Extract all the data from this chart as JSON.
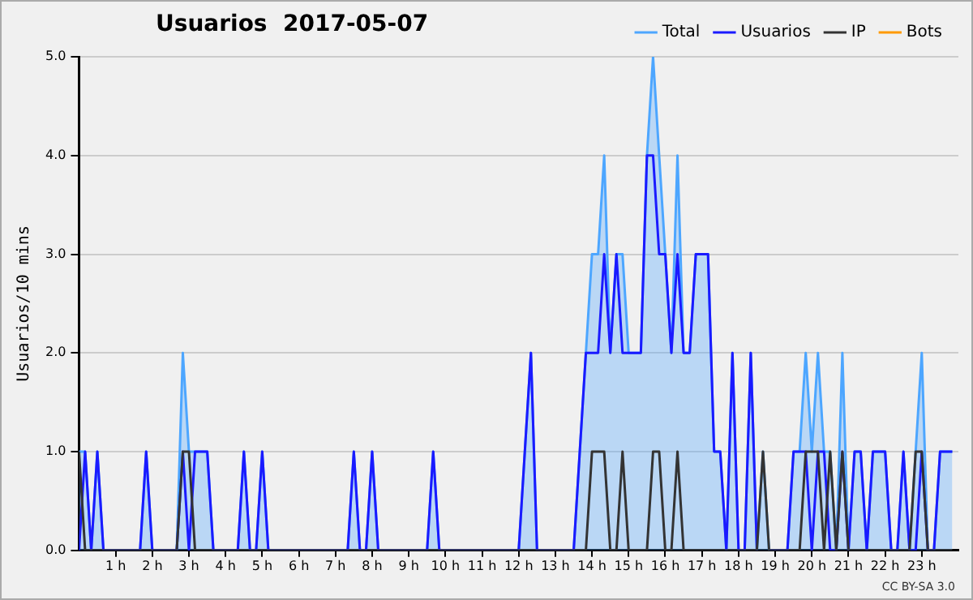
{
  "chart_data": {
    "type": "line",
    "title": "Usuarios  2017-05-07",
    "ylabel": "Usuarios/10 mins",
    "annotations": [
      "CC BY-SA 3.0"
    ],
    "x": [
      0,
      0.1667,
      0.3333,
      0.5,
      0.6667,
      0.8333,
      1,
      1.1667,
      1.3333,
      1.5,
      1.6667,
      1.8333,
      2,
      2.1667,
      2.3333,
      2.5,
      2.6667,
      2.8333,
      3,
      3.1667,
      3.3333,
      3.5,
      3.6667,
      3.8333,
      4,
      4.1667,
      4.3333,
      4.5,
      4.6667,
      4.8333,
      5,
      5.1667,
      5.3333,
      5.5,
      5.6667,
      5.8333,
      6,
      6.1667,
      6.3333,
      6.5,
      6.6667,
      6.8333,
      7,
      7.1667,
      7.3333,
      7.5,
      7.6667,
      7.8333,
      8,
      8.1667,
      8.3333,
      8.5,
      8.6667,
      8.8333,
      9,
      9.1667,
      9.3333,
      9.5,
      9.6667,
      9.8333,
      10,
      10.1667,
      10.3333,
      10.5,
      10.6667,
      10.8333,
      11,
      11.1667,
      11.3333,
      11.5,
      11.6667,
      11.8333,
      12,
      12.1667,
      12.3333,
      12.5,
      12.6667,
      12.8333,
      13,
      13.1667,
      13.3333,
      13.5,
      13.6667,
      13.8333,
      14,
      14.1667,
      14.3333,
      14.5,
      14.6667,
      14.8333,
      15,
      15.1667,
      15.3333,
      15.5,
      15.6667,
      15.8333,
      16,
      16.1667,
      16.3333,
      16.5,
      16.6667,
      16.8333,
      17,
      17.1667,
      17.3333,
      17.5,
      17.6667,
      17.8333,
      18,
      18.1667,
      18.3333,
      18.5,
      18.6667,
      18.8333,
      19,
      19.1667,
      19.3333,
      19.5,
      19.6667,
      19.8333,
      20,
      20.1667,
      20.3333,
      20.5,
      20.6667,
      20.8333,
      21,
      21.1667,
      21.3333,
      21.5,
      21.6667,
      21.8333,
      22,
      22.1667,
      22.3333,
      22.5,
      22.6667,
      22.8333,
      23,
      23.1667,
      23.3333,
      23.5,
      23.6667,
      23.8333
    ],
    "series": [
      {
        "name": "Total",
        "type": "area",
        "color": "#4da6ff",
        "values": [
          1,
          1,
          0,
          1,
          0,
          0,
          0,
          0,
          0,
          0,
          0,
          1,
          0,
          0,
          0,
          0,
          0,
          2,
          1,
          1,
          1,
          1,
          0,
          0,
          0,
          0,
          0,
          1,
          0,
          0,
          1,
          0,
          0,
          0,
          0,
          0,
          0,
          0,
          0,
          0,
          0,
          0,
          0,
          0,
          0,
          1,
          0,
          0,
          1,
          0,
          0,
          0,
          0,
          0,
          0,
          0,
          0,
          0,
          1,
          0,
          0,
          0,
          0,
          0,
          0,
          0,
          0,
          0,
          0,
          0,
          0,
          0,
          0,
          1,
          2,
          0,
          0,
          0,
          0,
          0,
          0,
          0,
          1,
          2,
          3,
          3,
          4,
          2,
          3,
          3,
          2,
          2,
          2,
          4,
          5,
          4,
          3,
          2,
          4,
          2,
          2,
          3,
          3,
          3,
          1,
          1,
          0,
          2,
          0,
          0,
          2,
          0,
          1,
          0,
          0,
          0,
          0,
          1,
          1,
          2,
          1,
          2,
          1,
          1,
          0,
          2,
          0,
          1,
          1,
          0,
          1,
          1,
          1,
          0,
          0,
          1,
          0,
          1,
          2,
          0,
          0,
          1,
          1,
          1
        ]
      },
      {
        "name": "Usuarios",
        "color": "#1a1aff",
        "values": [
          0,
          1,
          0,
          1,
          0,
          0,
          0,
          0,
          0,
          0,
          0,
          1,
          0,
          0,
          0,
          0,
          0,
          1,
          0,
          1,
          1,
          1,
          0,
          0,
          0,
          0,
          0,
          1,
          0,
          0,
          1,
          0,
          0,
          0,
          0,
          0,
          0,
          0,
          0,
          0,
          0,
          0,
          0,
          0,
          0,
          1,
          0,
          0,
          1,
          0,
          0,
          0,
          0,
          0,
          0,
          0,
          0,
          0,
          1,
          0,
          0,
          0,
          0,
          0,
          0,
          0,
          0,
          0,
          0,
          0,
          0,
          0,
          0,
          1,
          2,
          0,
          0,
          0,
          0,
          0,
          0,
          0,
          1,
          2,
          2,
          2,
          3,
          2,
          3,
          2,
          2,
          2,
          2,
          4,
          4,
          3,
          3,
          2,
          3,
          2,
          2,
          3,
          3,
          3,
          1,
          1,
          0,
          2,
          0,
          0,
          2,
          0,
          null,
          0,
          0,
          0,
          0,
          1,
          1,
          1,
          0,
          1,
          1,
          0,
          0,
          1,
          0,
          1,
          1,
          0,
          1,
          1,
          1,
          0,
          0,
          1,
          0,
          0,
          1,
          0,
          0,
          1,
          1,
          1
        ]
      },
      {
        "name": "IP",
        "color": "#333333",
        "values": [
          1,
          0,
          0,
          0,
          0,
          0,
          0,
          0,
          0,
          0,
          0,
          0,
          0,
          0,
          0,
          0,
          0,
          1,
          1,
          0,
          0,
          0,
          0,
          0,
          0,
          0,
          0,
          0,
          0,
          0,
          0,
          0,
          0,
          0,
          0,
          0,
          0,
          0,
          0,
          0,
          0,
          0,
          0,
          0,
          0,
          0,
          0,
          0,
          0,
          0,
          0,
          0,
          0,
          0,
          0,
          0,
          0,
          0,
          0,
          0,
          0,
          0,
          0,
          0,
          0,
          0,
          0,
          0,
          0,
          0,
          0,
          0,
          0,
          0,
          0,
          0,
          0,
          0,
          0,
          0,
          0,
          0,
          0,
          0,
          1,
          1,
          1,
          0,
          0,
          1,
          0,
          0,
          0,
          0,
          1,
          1,
          0,
          0,
          1,
          0,
          0,
          0,
          0,
          0,
          0,
          0,
          0,
          0,
          0,
          0,
          0,
          0,
          1,
          0,
          0,
          0,
          0,
          0,
          0,
          1,
          1,
          1,
          0,
          1,
          0,
          1,
          0,
          0,
          0,
          0,
          0,
          0,
          0,
          0,
          0,
          0,
          0,
          1,
          1,
          0,
          0,
          0,
          0,
          0
        ]
      },
      {
        "name": "Bots",
        "color": "#ff9900",
        "values": [
          null,
          null,
          null,
          null,
          null,
          null,
          null,
          null,
          null,
          null,
          null,
          null,
          null,
          null,
          null,
          null,
          null,
          null,
          null,
          null,
          null,
          null,
          null,
          null,
          null,
          null,
          null,
          null,
          null,
          null,
          null,
          null,
          null,
          null,
          null,
          null,
          null,
          null,
          null,
          null,
          null,
          null,
          null,
          null,
          null,
          null,
          null,
          null,
          null,
          null,
          null,
          null,
          null,
          null,
          null,
          null,
          null,
          null,
          null,
          null,
          null,
          null,
          null,
          null,
          null,
          null,
          null,
          null,
          null,
          null,
          null,
          null,
          null,
          null,
          null,
          null,
          null,
          null,
          null,
          null,
          null,
          null,
          null,
          null,
          null,
          null,
          null,
          null,
          null,
          null,
          null,
          null,
          null,
          null,
          null,
          null,
          null,
          null,
          null,
          null,
          null,
          null,
          null,
          null,
          null,
          null,
          null,
          null,
          null,
          null,
          null,
          null,
          null,
          null,
          null,
          null,
          null,
          null,
          null,
          null,
          null,
          null,
          null,
          null,
          null,
          null,
          null,
          null,
          null,
          null,
          null,
          null,
          null,
          null,
          null,
          null,
          null,
          null,
          null,
          null,
          null,
          null,
          null,
          null
        ]
      }
    ],
    "xlim": [
      0,
      24
    ],
    "xticks": [
      {
        "value": 1,
        "label": "1 h"
      },
      {
        "value": 2,
        "label": "2 h"
      },
      {
        "value": 3,
        "label": "3 h"
      },
      {
        "value": 4,
        "label": "4 h"
      },
      {
        "value": 5,
        "label": "5 h"
      },
      {
        "value": 6,
        "label": "6 h"
      },
      {
        "value": 7,
        "label": "7 h"
      },
      {
        "value": 8,
        "label": "8 h"
      },
      {
        "value": 9,
        "label": "9 h"
      },
      {
        "value": 10,
        "label": "10 h"
      },
      {
        "value": 11,
        "label": "11 h"
      },
      {
        "value": 12,
        "label": "12 h"
      },
      {
        "value": 13,
        "label": "13 h"
      },
      {
        "value": 14,
        "label": "14 h"
      },
      {
        "value": 15,
        "label": "15 h"
      },
      {
        "value": 16,
        "label": "16 h"
      },
      {
        "value": 17,
        "label": "17 h"
      },
      {
        "value": 18,
        "label": "18 h"
      },
      {
        "value": 19,
        "label": "19 h"
      },
      {
        "value": 20,
        "label": "20 h"
      },
      {
        "value": 21,
        "label": "21 h"
      },
      {
        "value": 22,
        "label": "22 h"
      },
      {
        "value": 23,
        "label": "23 h"
      }
    ],
    "ylim": [
      0,
      5
    ],
    "yticks": [
      {
        "value": 0,
        "label": "0.0"
      },
      {
        "value": 1,
        "label": "1.0"
      },
      {
        "value": 2,
        "label": "2.0"
      },
      {
        "value": 3,
        "label": "3.0"
      },
      {
        "value": 4,
        "label": "4.0"
      },
      {
        "value": 5,
        "label": "5.0"
      }
    ],
    "grid": "y",
    "legend": "top right",
    "marker": "none",
    "line_style": "solid"
  }
}
